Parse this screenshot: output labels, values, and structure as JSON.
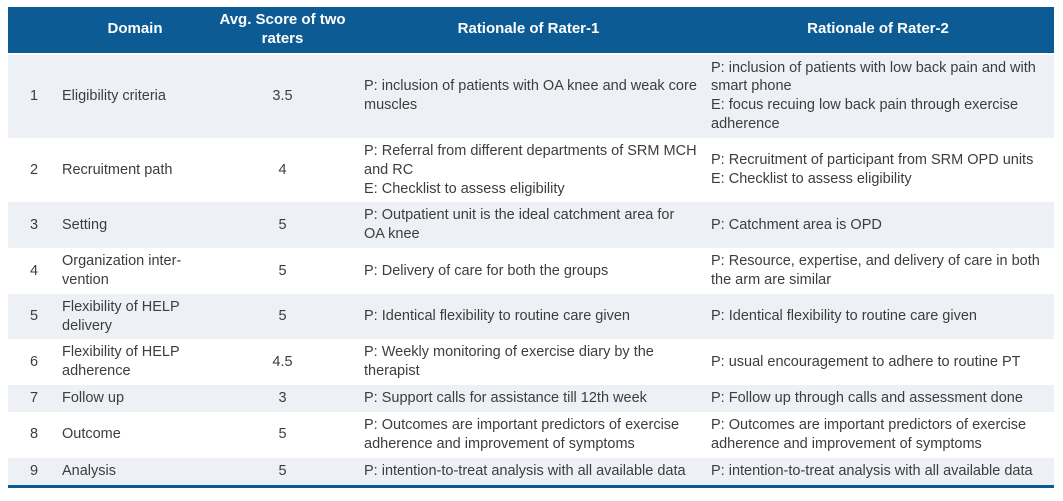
{
  "header": {
    "num": "",
    "domain": "Domain",
    "avg_score": "Avg. Score of two raters",
    "rater1": "Rationale of Rater-1",
    "rater2": "Rationale of Rater-2"
  },
  "colors": {
    "header_bg": "#0d5b94",
    "stripe_bg": "#edf1f6",
    "body_text": "#3d3d3d",
    "bottom_border": "#0d5b94"
  },
  "rows": [
    {
      "num": "1",
      "domain": "Eligibility criteria",
      "score": "3.5",
      "rater1": "P: inclusion of patients with OA knee and weak core muscles",
      "rater2": "P: inclusion of patients with low back pain and with smart phone\nE: focus recuing low back pain through exercise adherence"
    },
    {
      "num": "2",
      "domain": "Recruitment path",
      "score": "4",
      "rater1": "P: Referral from different departments of SRM MCH and RC\nE: Checklist to assess eligibility",
      "rater2": "P: Recruitment of participant from SRM OPD units\nE: Checklist to assess eligibility"
    },
    {
      "num": "3",
      "domain": "Setting",
      "score": "5",
      "rater1": "P: Outpatient unit is the ideal catchment area for OA knee",
      "rater2": "P: Catchment area is OPD"
    },
    {
      "num": "4",
      "domain": "Organization inter-vention",
      "score": "5",
      "rater1": "P: Delivery of care for both the groups",
      "rater2": "P: Resource, expertise, and delivery of care in both the arm are similar"
    },
    {
      "num": "5",
      "domain": "Flexibility of HELP delivery",
      "score": "5",
      "rater1": "P: Identical flexibility to routine care given",
      "rater2": "P: Identical flexibility to routine care given"
    },
    {
      "num": "6",
      "domain": "Flexibility of HELP adherence",
      "score": "4.5",
      "rater1": "P: Weekly monitoring of exercise diary by the therapist",
      "rater2": "P: usual encouragement to adhere to routine PT"
    },
    {
      "num": "7",
      "domain": "Follow up",
      "score": "3",
      "rater1": "P: Support calls for assistance till 12th week",
      "rater2": "P: Follow up through calls and assessment done"
    },
    {
      "num": "8",
      "domain": "Outcome",
      "score": "5",
      "rater1": "P: Outcomes are important predictors of exercise adherence and improvement of symptoms",
      "rater2": "P: Outcomes are important predictors of exercise adherence and improvement of symptoms"
    },
    {
      "num": "9",
      "domain": "Analysis",
      "score": "5",
      "rater1": "P: intention-to-treat analysis with all available data",
      "rater2": "P: intention-to-treat analysis with all available data"
    }
  ]
}
